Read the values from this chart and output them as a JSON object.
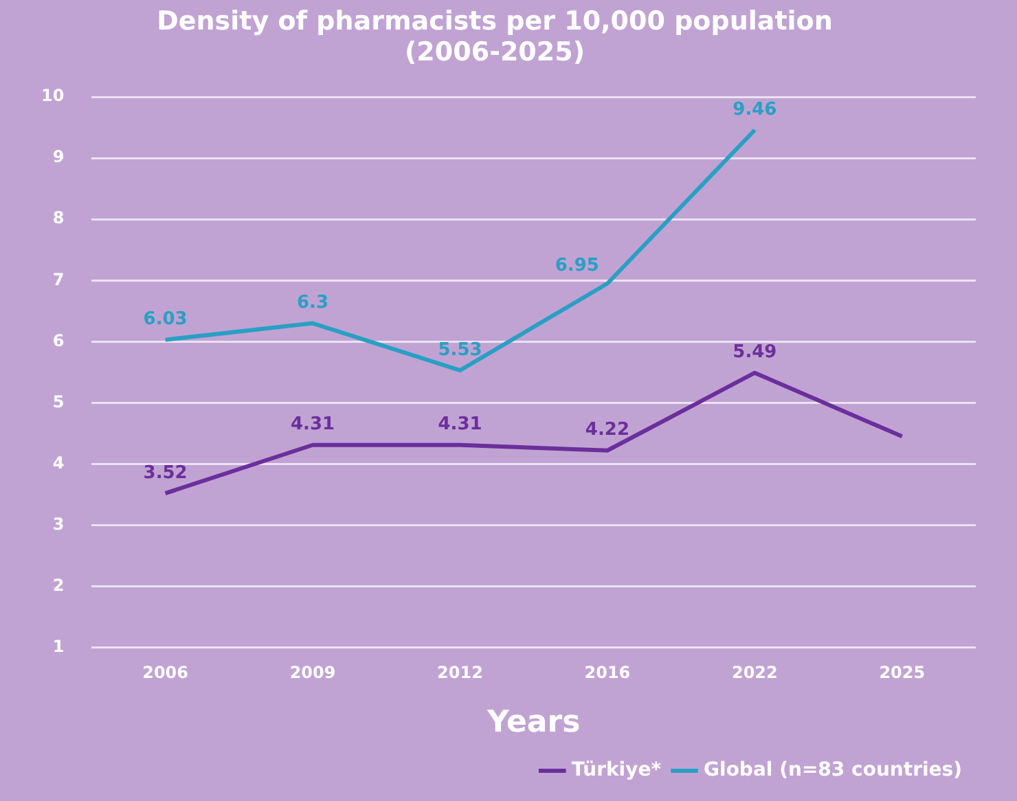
{
  "chart_data": {
    "type": "line",
    "title": "Density of pharmacists per 10,000 population\n(2006-2025)",
    "xlabel": "Years",
    "categories": [
      "2006",
      "2009",
      "2012",
      "2016",
      "2022",
      "2025"
    ],
    "series": [
      {
        "name": "Türkiye*",
        "color": "#6b2f9c",
        "values": [
          3.52,
          4.31,
          4.31,
          4.22,
          5.49,
          4.45
        ],
        "value_labels": [
          "3.52",
          "4.31",
          "4.31",
          "4.22",
          "5.49",
          null
        ]
      },
      {
        "name": "Global (n=83 countries)",
        "color": "#2a9fc4",
        "values": [
          6.03,
          6.3,
          5.53,
          6.95,
          9.46,
          null
        ],
        "value_labels": [
          "6.03",
          "6.3",
          "5.53",
          "6.95",
          "9.46",
          null
        ]
      }
    ],
    "ylim": [
      1,
      10
    ],
    "yticks": [
      1,
      2,
      3,
      4,
      5,
      6,
      7,
      8,
      9,
      10
    ],
    "grid": "y",
    "legend": "bottom",
    "marker": "none",
    "line_style": "solid"
  }
}
